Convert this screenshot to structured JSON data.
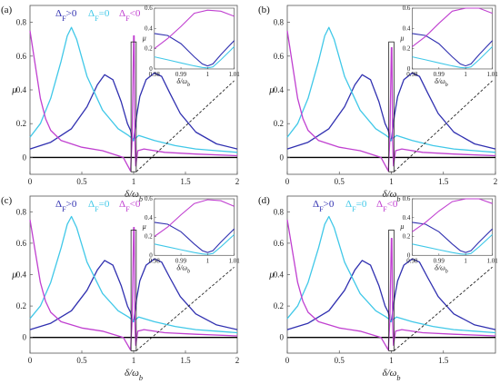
{
  "chart_data": [
    {
      "panel_label": "(a)",
      "type": "line",
      "xlabel": "δ/ω_b",
      "ylabel": "μ",
      "xlim": [
        0,
        2
      ],
      "ylim": [
        -0.1,
        0.9
      ],
      "xticks": [
        "0",
        "0.5",
        "1",
        "1.5",
        "2"
      ],
      "yticks": [
        "0",
        "0.2",
        "0.4",
        "0.6",
        "0.8"
      ],
      "legend": [
        "Δ_F>0",
        "Δ_F=0",
        "Δ_F<0"
      ],
      "colors": [
        "#3030b0",
        "#40c8e8",
        "#c040d0"
      ],
      "series": [
        {
          "name": "Δ_F>0",
          "x": [
            0,
            0.2,
            0.4,
            0.55,
            0.65,
            0.72,
            0.8,
            0.88,
            0.94,
            0.97,
            0.99,
            1.0,
            1.01,
            1.03,
            1.06,
            1.12,
            1.2,
            1.27,
            1.35,
            1.45,
            1.6,
            1.8,
            2.0
          ],
          "y": [
            0.05,
            0.09,
            0.17,
            0.3,
            0.43,
            0.49,
            0.46,
            0.33,
            0.2,
            0.16,
            0.1,
            0.1,
            0.15,
            0.25,
            0.36,
            0.46,
            0.5,
            0.48,
            0.38,
            0.26,
            0.15,
            0.08,
            0.05
          ]
        },
        {
          "name": "Δ_F=0",
          "x": [
            0,
            0.1,
            0.2,
            0.3,
            0.36,
            0.4,
            0.45,
            0.55,
            0.7,
            0.85,
            0.95,
            0.99,
            1.0,
            1.01,
            1.05,
            1.2,
            1.4,
            1.6,
            1.8,
            2.0
          ],
          "y": [
            0.12,
            0.2,
            0.35,
            0.57,
            0.72,
            0.77,
            0.7,
            0.48,
            0.28,
            0.17,
            0.13,
            0.11,
            0.1,
            0.11,
            0.13,
            0.1,
            0.07,
            0.05,
            0.04,
            0.03
          ]
        },
        {
          "name": "Δ_F<0",
          "x": [
            0,
            0.05,
            0.1,
            0.15,
            0.2,
            0.3,
            0.5,
            0.7,
            0.9,
            0.97,
            0.985,
            1.0,
            1.005,
            1.012,
            1.02,
            1.04,
            1.1,
            1.3,
            1.6,
            2.0
          ],
          "y": [
            0.75,
            0.55,
            0.35,
            0.23,
            0.16,
            0.1,
            0.06,
            0.04,
            0.0,
            -0.08,
            0.1,
            0.72,
            0.72,
            0.1,
            -0.05,
            0.04,
            0.05,
            0.03,
            0.02,
            0.01
          ]
        }
      ],
      "inset": {
        "xlim": [
          0.98,
          1.01
        ],
        "ylim": [
          0,
          0.6
        ],
        "xticks": [
          "0.98",
          "0.99",
          "1",
          "1.01"
        ],
        "yticks": [
          "0",
          "0.2",
          "0.4",
          "0.6"
        ],
        "xlabel": "δ/ω_b",
        "ylabel": "μ",
        "series": [
          {
            "name": "Δ_F>0",
            "x": [
              0.98,
              0.985,
              0.99,
              0.995,
              0.998,
              1.0,
              1.002,
              1.005,
              1.01
            ],
            "y": [
              0.35,
              0.33,
              0.25,
              0.12,
              0.05,
              0.03,
              0.05,
              0.14,
              0.28
            ]
          },
          {
            "name": "Δ_F=0",
            "x": [
              0.98,
              0.985,
              0.99,
              0.995,
              0.998,
              1.0,
              1.002,
              1.005,
              1.01
            ],
            "y": [
              0.12,
              0.09,
              0.06,
              0.03,
              0.015,
              0.01,
              0.02,
              0.09,
              0.22
            ]
          },
          {
            "name": "Δ_F<0",
            "x": [
              0.98,
              0.985,
              0.99,
              0.995,
              1.0,
              1.005,
              1.01
            ],
            "y": [
              0.2,
              0.3,
              0.42,
              0.55,
              0.58,
              0.57,
              0.52
            ]
          }
        ]
      }
    },
    {
      "panel_label": "(b)",
      "type": "line",
      "xlabel": "δ/ω_b",
      "ylabel": "μ",
      "xlim": [
        0,
        2
      ],
      "ylim": [
        -0.1,
        0.9
      ],
      "xticks": [
        "0",
        "0.5",
        "1",
        "1.5",
        "2"
      ],
      "yticks": [
        "0",
        "0.2",
        "0.4",
        "0.6",
        "0.8"
      ],
      "legend": [],
      "colors": [
        "#3030b0",
        "#40c8e8",
        "#c040d0"
      ],
      "series": [
        {
          "name": "Δ_F>0",
          "x": [
            0,
            0.2,
            0.4,
            0.55,
            0.65,
            0.72,
            0.8,
            0.88,
            0.94,
            0.97,
            0.99,
            1.0,
            1.01,
            1.03,
            1.06,
            1.12,
            1.2,
            1.27,
            1.35,
            1.45,
            1.6,
            1.8,
            2.0
          ],
          "y": [
            0.05,
            0.09,
            0.17,
            0.3,
            0.43,
            0.49,
            0.46,
            0.33,
            0.2,
            0.16,
            0.1,
            0.1,
            0.15,
            0.25,
            0.36,
            0.46,
            0.5,
            0.48,
            0.38,
            0.26,
            0.15,
            0.08,
            0.05
          ]
        },
        {
          "name": "Δ_F=0",
          "x": [
            0,
            0.1,
            0.2,
            0.3,
            0.36,
            0.4,
            0.45,
            0.55,
            0.7,
            0.85,
            0.95,
            0.99,
            1.0,
            1.01,
            1.05,
            1.2,
            1.4,
            1.6,
            1.8,
            2.0
          ],
          "y": [
            0.12,
            0.2,
            0.35,
            0.57,
            0.72,
            0.77,
            0.7,
            0.48,
            0.28,
            0.17,
            0.13,
            0.11,
            0.1,
            0.11,
            0.13,
            0.1,
            0.07,
            0.05,
            0.04,
            0.03
          ]
        },
        {
          "name": "Δ_F<0",
          "x": [
            0,
            0.05,
            0.1,
            0.15,
            0.2,
            0.3,
            0.5,
            0.7,
            0.9,
            0.97,
            0.985,
            1.0,
            1.005,
            1.012,
            1.02,
            1.04,
            1.1,
            1.3,
            1.6,
            2.0
          ],
          "y": [
            0.75,
            0.55,
            0.35,
            0.23,
            0.16,
            0.1,
            0.06,
            0.04,
            0.0,
            -0.08,
            0.1,
            0.65,
            0.65,
            0.1,
            -0.05,
            0.04,
            0.05,
            0.03,
            0.02,
            0.01
          ]
        }
      ],
      "inset": {
        "xlim": [
          0.98,
          1.01
        ],
        "ylim": [
          0,
          0.6
        ],
        "xticks": [
          "0.98",
          "0.99",
          "1",
          "1.01"
        ],
        "yticks": [
          "0",
          "0.2",
          "0.4",
          "0.6"
        ],
        "xlabel": "δ/ω_b",
        "ylabel": "μ",
        "series": [
          {
            "name": "Δ_F>0",
            "x": [
              0.98,
              0.985,
              0.99,
              0.995,
              0.998,
              1.0,
              1.002,
              1.005,
              1.01
            ],
            "y": [
              0.35,
              0.33,
              0.25,
              0.12,
              0.05,
              0.03,
              0.05,
              0.14,
              0.28
            ]
          },
          {
            "name": "Δ_F=0",
            "x": [
              0.98,
              0.985,
              0.99,
              0.995,
              0.998,
              1.0,
              1.002,
              1.005,
              1.01
            ],
            "y": [
              0.12,
              0.09,
              0.06,
              0.03,
              0.015,
              0.01,
              0.02,
              0.09,
              0.22
            ]
          },
          {
            "name": "Δ_F<0",
            "x": [
              0.98,
              0.985,
              0.99,
              0.995,
              1.0,
              1.005,
              1.01
            ],
            "y": [
              0.22,
              0.32,
              0.45,
              0.57,
              0.6,
              0.6,
              0.55
            ]
          }
        ]
      }
    },
    {
      "panel_label": "(c)",
      "type": "line",
      "xlabel": "δ/ω_b",
      "ylabel": "μ",
      "xlim": [
        0,
        2
      ],
      "ylim": [
        -0.1,
        0.9
      ],
      "xticks": [
        "0",
        "0.5",
        "1",
        "1.5",
        "2"
      ],
      "yticks": [
        "0",
        "0.2",
        "0.4",
        "0.6",
        "0.8"
      ],
      "legend": [
        "Δ_F>0",
        "Δ_F=0",
        "Δ_F<0"
      ],
      "colors": [
        "#3030b0",
        "#40c8e8",
        "#c040d0"
      ],
      "series": [
        {
          "name": "Δ_F>0",
          "x": [
            0,
            0.2,
            0.4,
            0.55,
            0.65,
            0.72,
            0.8,
            0.88,
            0.94,
            0.97,
            0.99,
            1.0,
            1.01,
            1.03,
            1.06,
            1.12,
            1.2,
            1.27,
            1.35,
            1.45,
            1.6,
            1.8,
            2.0
          ],
          "y": [
            0.05,
            0.09,
            0.17,
            0.3,
            0.43,
            0.49,
            0.46,
            0.33,
            0.2,
            0.16,
            0.1,
            0.1,
            0.15,
            0.25,
            0.36,
            0.46,
            0.5,
            0.48,
            0.38,
            0.26,
            0.15,
            0.08,
            0.05
          ]
        },
        {
          "name": "Δ_F=0",
          "x": [
            0,
            0.1,
            0.2,
            0.3,
            0.36,
            0.4,
            0.45,
            0.55,
            0.7,
            0.85,
            0.95,
            0.99,
            1.0,
            1.01,
            1.05,
            1.2,
            1.4,
            1.6,
            1.8,
            2.0
          ],
          "y": [
            0.12,
            0.2,
            0.35,
            0.57,
            0.72,
            0.77,
            0.7,
            0.48,
            0.28,
            0.17,
            0.13,
            0.11,
            0.1,
            0.11,
            0.13,
            0.1,
            0.07,
            0.05,
            0.04,
            0.03
          ]
        },
        {
          "name": "Δ_F<0",
          "x": [
            0,
            0.05,
            0.1,
            0.15,
            0.2,
            0.3,
            0.5,
            0.7,
            0.9,
            0.97,
            0.985,
            1.0,
            1.005,
            1.012,
            1.02,
            1.04,
            1.1,
            1.3,
            1.6,
            2.0
          ],
          "y": [
            0.75,
            0.55,
            0.35,
            0.23,
            0.16,
            0.1,
            0.06,
            0.04,
            0.0,
            -0.08,
            0.1,
            0.7,
            0.7,
            0.1,
            -0.05,
            0.04,
            0.05,
            0.03,
            0.02,
            0.01
          ]
        }
      ],
      "inset": {
        "xlim": [
          0.98,
          1.01
        ],
        "ylim": [
          0,
          0.6
        ],
        "xticks": [
          "0.98",
          "0.99",
          "1",
          "1.01"
        ],
        "yticks": [
          "0",
          "0.2",
          "0.4",
          "0.6"
        ],
        "xlabel": "δ/ω_b",
        "ylabel": "μ",
        "series": [
          {
            "name": "Δ_F>0",
            "x": [
              0.98,
              0.985,
              0.99,
              0.995,
              0.998,
              1.0,
              1.002,
              1.005,
              1.01
            ],
            "y": [
              0.35,
              0.33,
              0.25,
              0.12,
              0.05,
              0.03,
              0.05,
              0.14,
              0.28
            ]
          },
          {
            "name": "Δ_F=0",
            "x": [
              0.98,
              0.985,
              0.99,
              0.995,
              0.998,
              1.0,
              1.002,
              1.005,
              1.01
            ],
            "y": [
              0.12,
              0.09,
              0.06,
              0.03,
              0.015,
              0.01,
              0.02,
              0.09,
              0.22
            ]
          },
          {
            "name": "Δ_F<0",
            "x": [
              0.98,
              0.985,
              0.99,
              0.995,
              1.0,
              1.005,
              1.01
            ],
            "y": [
              0.2,
              0.3,
              0.43,
              0.55,
              0.59,
              0.58,
              0.52
            ]
          }
        ]
      }
    },
    {
      "panel_label": "(d)",
      "type": "line",
      "xlabel": "δ/ω_b",
      "ylabel": "μ",
      "xlim": [
        0,
        2
      ],
      "ylim": [
        -0.1,
        0.9
      ],
      "xticks": [
        "0",
        "0.5",
        "1",
        "1.5"
      ],
      "yticks": [
        "0",
        "0.2",
        "0.4",
        "0.6",
        "0.8"
      ],
      "legend": [
        "Δ_F>0",
        "Δ_F=0",
        "Δ_F<0"
      ],
      "colors": [
        "#3030b0",
        "#40c8e8",
        "#c040d0"
      ],
      "series": [
        {
          "name": "Δ_F>0",
          "x": [
            0,
            0.2,
            0.4,
            0.55,
            0.65,
            0.72,
            0.8,
            0.88,
            0.94,
            0.97,
            0.99,
            1.0,
            1.01,
            1.03,
            1.06,
            1.12,
            1.2,
            1.27,
            1.35,
            1.45,
            1.6,
            1.8,
            2.0
          ],
          "y": [
            0.05,
            0.09,
            0.17,
            0.3,
            0.43,
            0.49,
            0.46,
            0.33,
            0.2,
            0.16,
            0.1,
            0.1,
            0.15,
            0.25,
            0.36,
            0.46,
            0.5,
            0.48,
            0.38,
            0.26,
            0.15,
            0.08,
            0.05
          ]
        },
        {
          "name": "Δ_F=0",
          "x": [
            0,
            0.1,
            0.2,
            0.3,
            0.36,
            0.4,
            0.45,
            0.55,
            0.7,
            0.85,
            0.95,
            0.99,
            1.0,
            1.01,
            1.05,
            1.2,
            1.4,
            1.6,
            1.8,
            2.0
          ],
          "y": [
            0.12,
            0.2,
            0.35,
            0.57,
            0.72,
            0.77,
            0.7,
            0.48,
            0.28,
            0.17,
            0.13,
            0.11,
            0.1,
            0.11,
            0.13,
            0.1,
            0.07,
            0.05,
            0.04,
            0.03
          ]
        },
        {
          "name": "Δ_F<0",
          "x": [
            0,
            0.05,
            0.1,
            0.15,
            0.2,
            0.3,
            0.5,
            0.7,
            0.9,
            0.97,
            0.985,
            1.0,
            1.005,
            1.012,
            1.02,
            1.04,
            1.1,
            1.3,
            1.6,
            2.0
          ],
          "y": [
            0.75,
            0.55,
            0.35,
            0.23,
            0.16,
            0.1,
            0.06,
            0.04,
            0.0,
            -0.08,
            0.1,
            0.63,
            0.63,
            0.1,
            -0.05,
            0.04,
            0.05,
            0.03,
            0.02,
            0.01
          ]
        }
      ],
      "inset": {
        "xlim": [
          0.98,
          1.01
        ],
        "ylim": [
          0,
          0.6
        ],
        "xticks": [
          "0.98",
          "0.99",
          "1",
          "1.01"
        ],
        "yticks": [
          "0",
          "0.2",
          "0.4",
          "0.6"
        ],
        "xlabel": "δ/ω_b",
        "ylabel": "μ",
        "series": [
          {
            "name": "Δ_F>0",
            "x": [
              0.98,
              0.985,
              0.99,
              0.995,
              0.998,
              1.0,
              1.002,
              1.005,
              1.01
            ],
            "y": [
              0.35,
              0.33,
              0.25,
              0.12,
              0.05,
              0.03,
              0.05,
              0.14,
              0.28
            ]
          },
          {
            "name": "Δ_F=0",
            "x": [
              0.98,
              0.985,
              0.99,
              0.995,
              0.998,
              1.0,
              1.002,
              1.005,
              1.01
            ],
            "y": [
              0.12,
              0.09,
              0.06,
              0.03,
              0.015,
              0.01,
              0.02,
              0.09,
              0.22
            ]
          },
          {
            "name": "Δ_F<0",
            "x": [
              0.98,
              0.985,
              0.99,
              0.995,
              1.0,
              1.005,
              1.01
            ],
            "y": [
              0.25,
              0.35,
              0.47,
              0.57,
              0.6,
              0.6,
              0.55
            ]
          }
        ]
      }
    }
  ]
}
